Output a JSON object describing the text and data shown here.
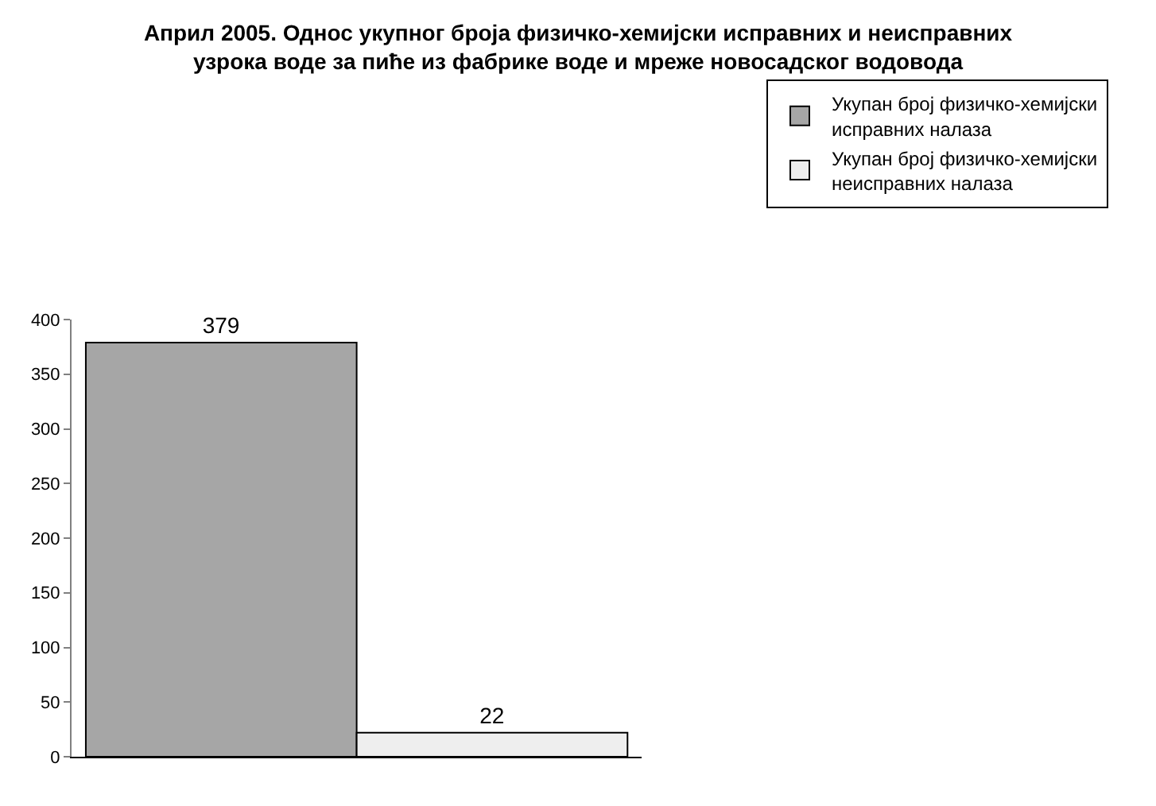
{
  "chart_data": {
    "type": "bar",
    "title": "Април 2005. Однос укупног броја физичко-хемијски исправних и неисправних узрока воде за пиће из фабрике воде и мреже новосадског водовода",
    "categories": [
      null
    ],
    "series": [
      {
        "name": "Укупан број физичко-хемијски исправних налаза",
        "color": "#a6a6a6",
        "values": [
          379
        ]
      },
      {
        "name": "Укупан број физичко-хемијски неисправних налаза",
        "color": "#eeeeee",
        "values": [
          22
        ]
      }
    ],
    "ylim": [
      0,
      400
    ],
    "yticks": [
      0,
      50,
      100,
      150,
      200,
      250,
      300,
      350,
      400
    ],
    "data_labels": true,
    "legend": "top right",
    "grid": false,
    "tick_labels": "y"
  }
}
